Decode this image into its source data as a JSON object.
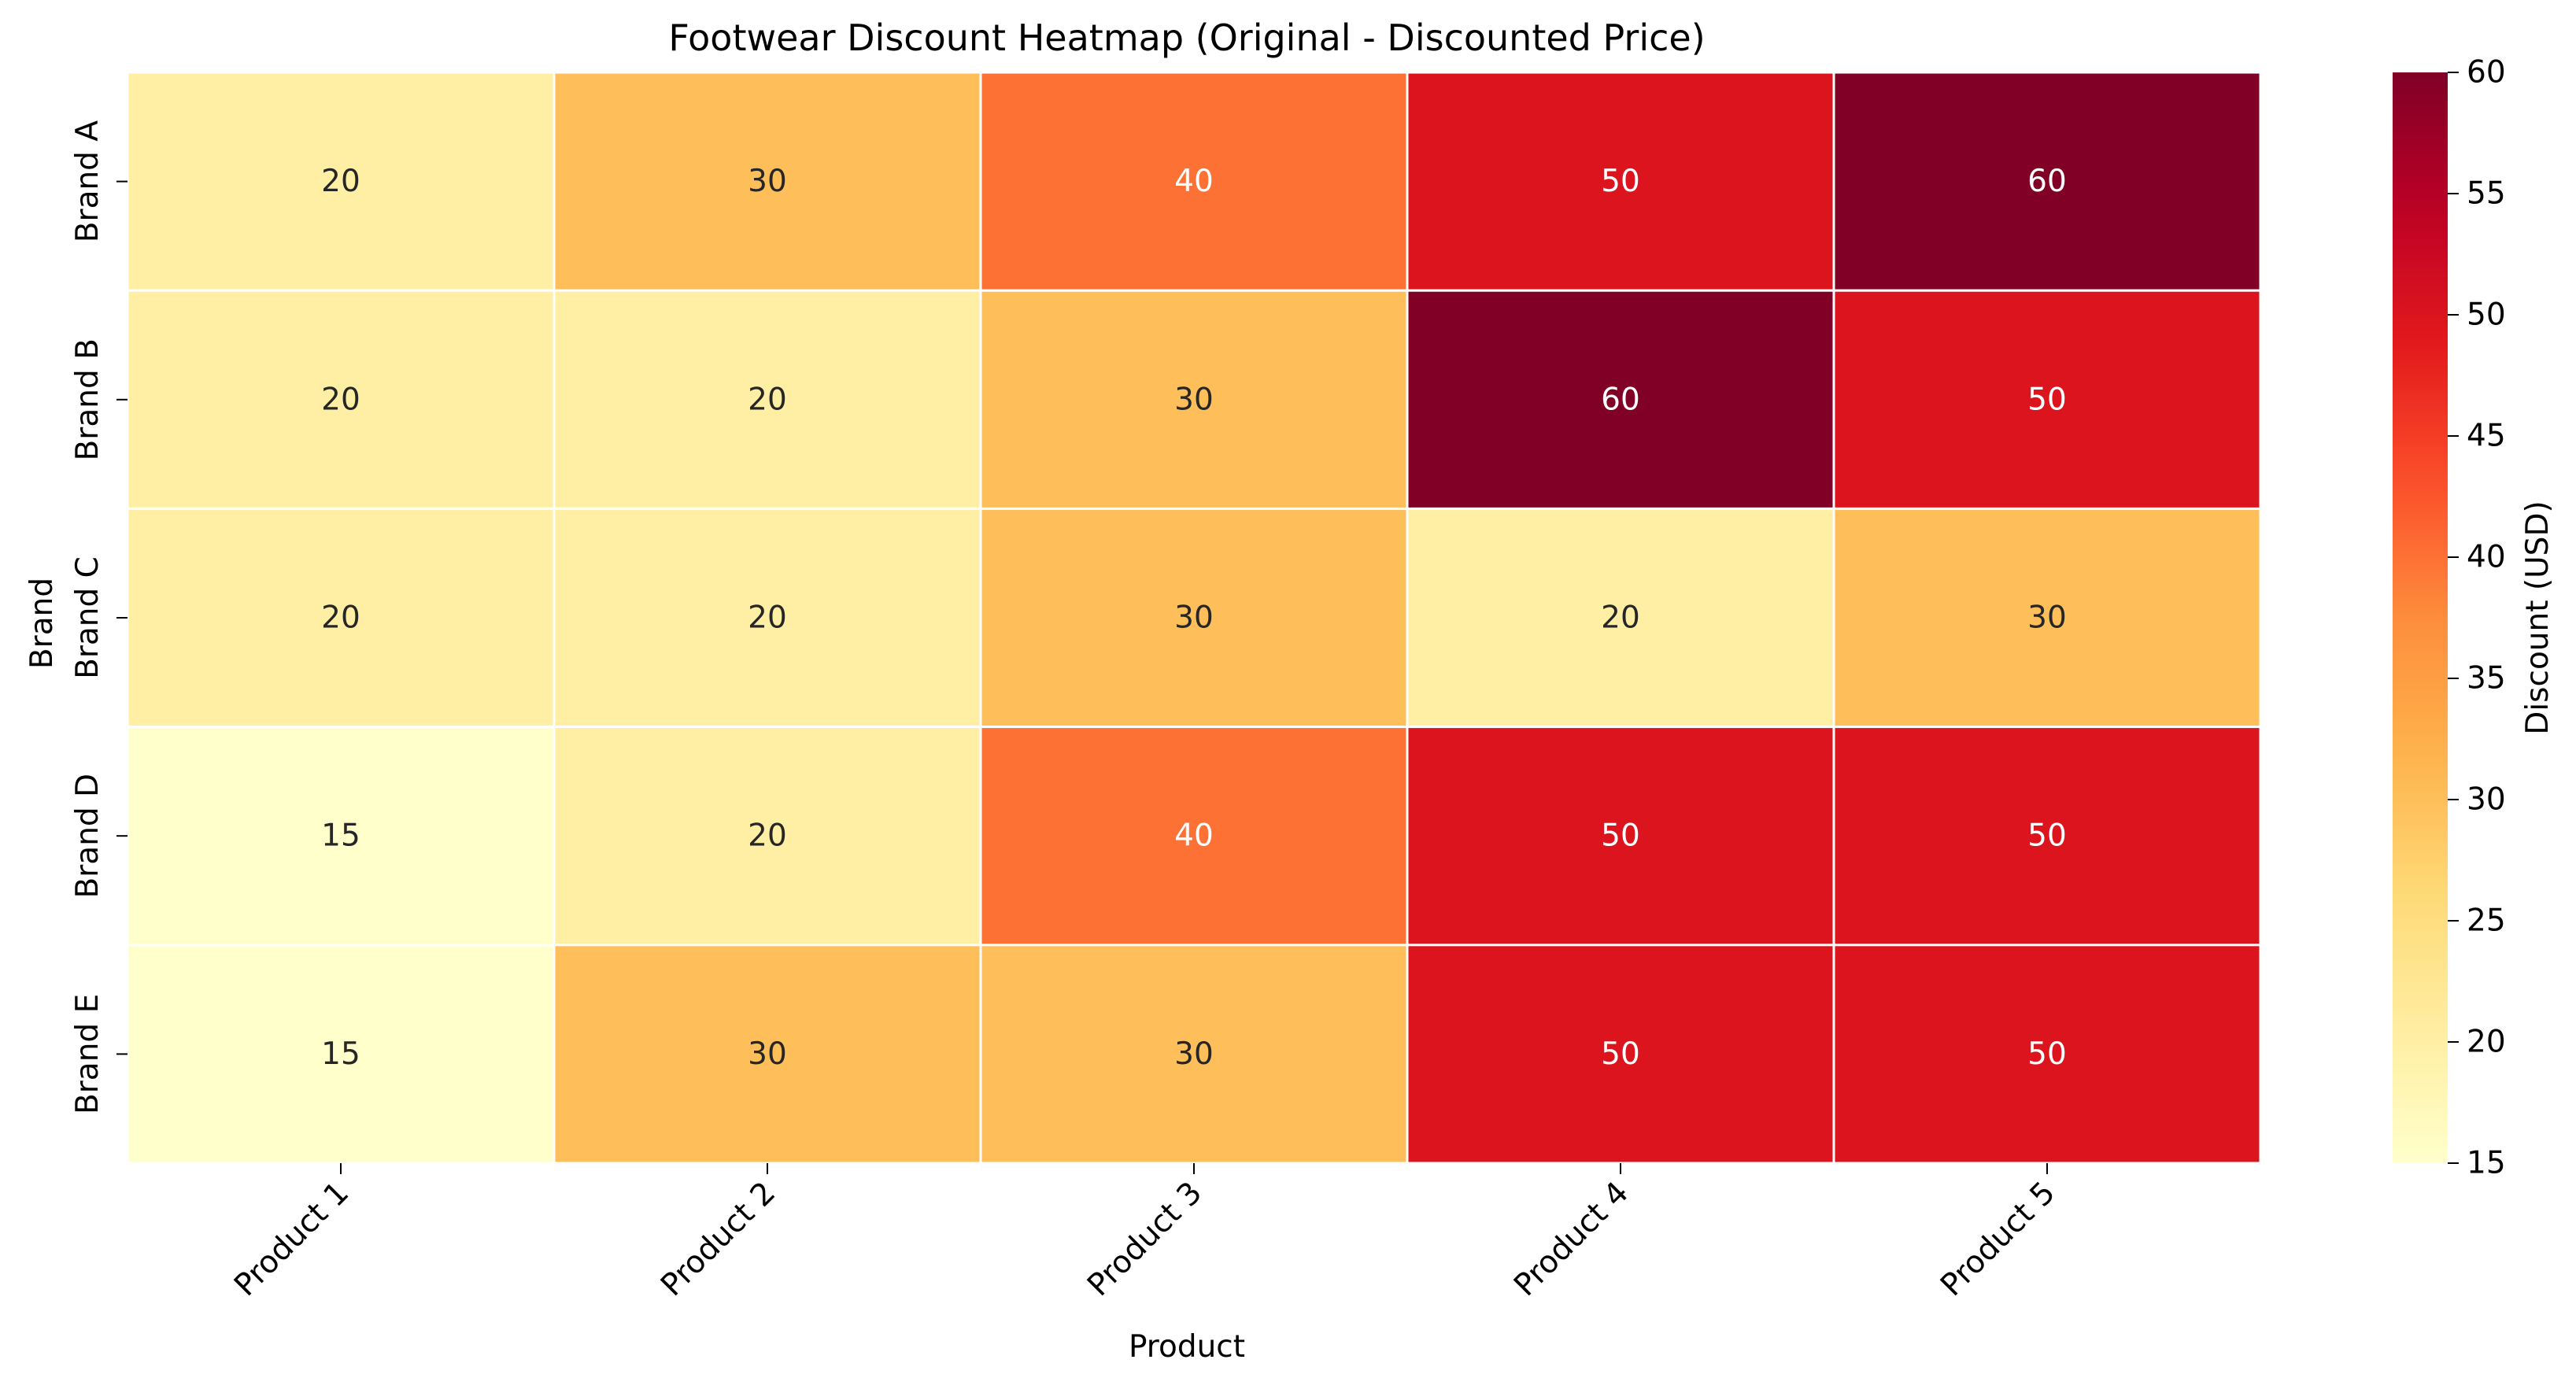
{
  "chart_data": {
    "type": "heatmap",
    "title": "Footwear Discount Heatmap (Original - Discounted Price)",
    "xlabel": "Product",
    "ylabel": "Brand",
    "x_categories": [
      "Product 1",
      "Product 2",
      "Product 3",
      "Product 4",
      "Product 5"
    ],
    "y_categories": [
      "Brand A",
      "Brand B",
      "Brand C",
      "Brand D",
      "Brand E"
    ],
    "values": [
      [
        20,
        30,
        40,
        50,
        60
      ],
      [
        20,
        20,
        30,
        60,
        50
      ],
      [
        20,
        20,
        30,
        20,
        30
      ],
      [
        15,
        20,
        40,
        50,
        50
      ],
      [
        15,
        30,
        30,
        50,
        50
      ]
    ],
    "colorbar": {
      "label": "Discount (USD)",
      "range": [
        15,
        60
      ],
      "ticks": [
        15,
        20,
        25,
        30,
        35,
        40,
        45,
        50,
        55,
        60
      ],
      "colormap": "YlOrRd"
    },
    "annotations_shown": true,
    "cell_border_color": "#ffffff"
  }
}
